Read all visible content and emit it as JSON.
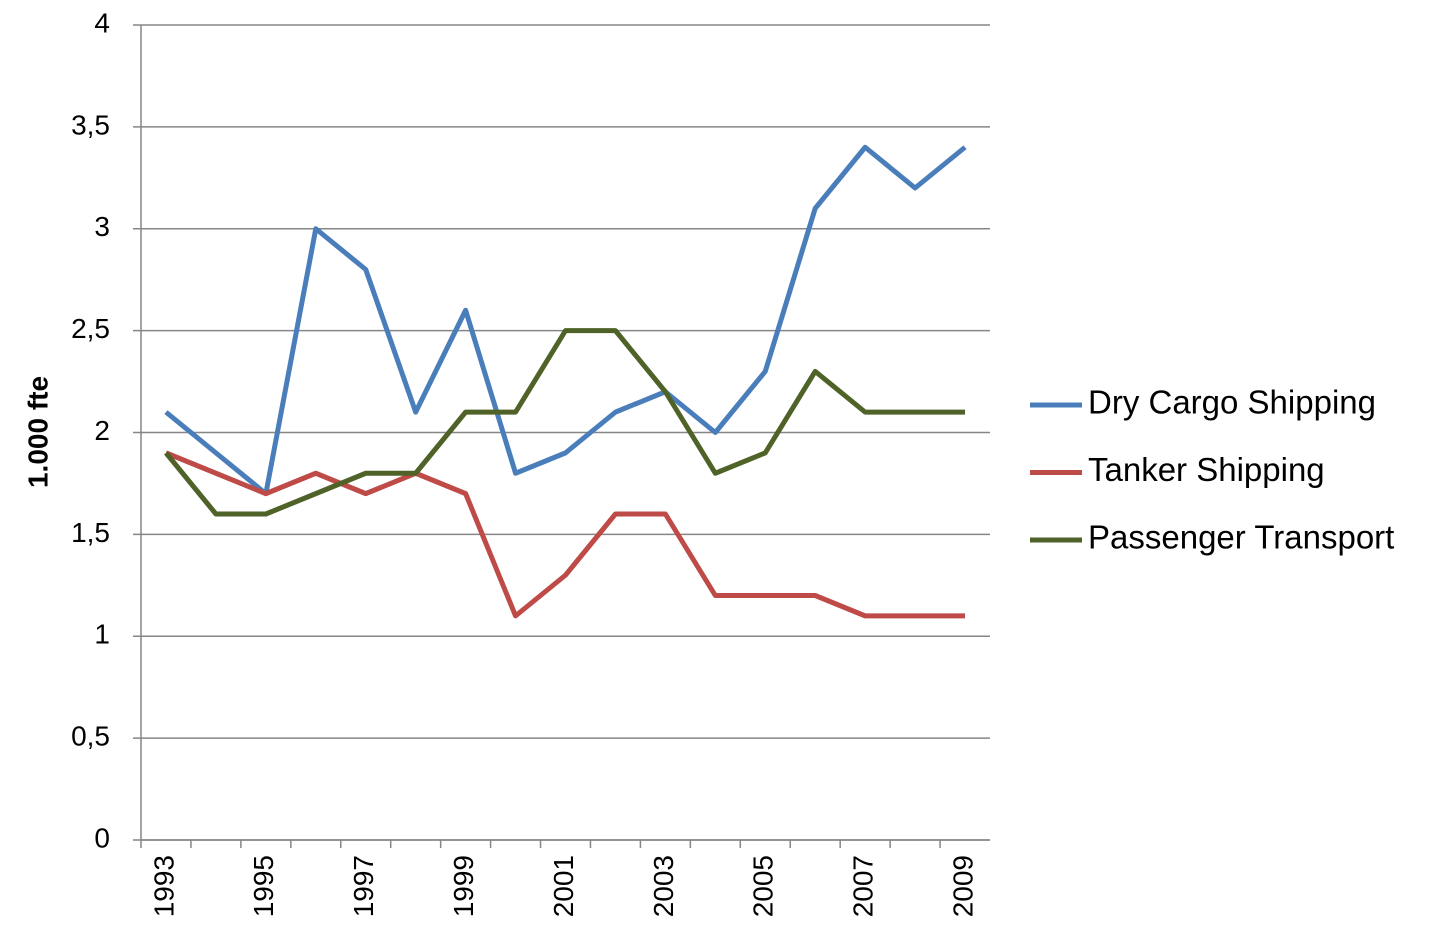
{
  "chart_data": {
    "type": "line",
    "y_label": "1.000 fte",
    "categories": [
      "1993",
      null,
      "1995",
      null,
      "1997",
      null,
      "1999",
      null,
      "2001",
      null,
      "2003",
      null,
      "2005",
      null,
      "2007",
      null,
      "2009"
    ],
    "series": [
      {
        "name": "Dry Cargo Shipping",
        "color": "#4a7ebb",
        "values": [
          2.1,
          1.9,
          1.7,
          3.0,
          2.8,
          2.1,
          2.6,
          1.8,
          1.9,
          2.1,
          2.2,
          2.0,
          2.3,
          3.1,
          3.4,
          3.2,
          3.4
        ]
      },
      {
        "name": "Tanker Shipping",
        "color": "#be4b48",
        "values": [
          1.9,
          1.8,
          1.7,
          1.8,
          1.7,
          1.8,
          1.7,
          1.1,
          1.3,
          1.6,
          1.6,
          1.2,
          1.2,
          1.2,
          1.1,
          1.1,
          1.1
        ]
      },
      {
        "name": "Passenger Transport",
        "color": "#4f6228",
        "values": [
          1.9,
          1.6,
          1.6,
          1.7,
          1.8,
          1.8,
          2.1,
          2.1,
          2.5,
          2.5,
          2.2,
          1.8,
          1.9,
          2.3,
          2.1,
          2.1,
          2.1
        ]
      }
    ],
    "ylim": [
      0,
      4
    ],
    "yticks": [
      0,
      {
        "value": 0.5,
        "label": "0,5"
      },
      1,
      {
        "value": 1.5,
        "label": "1,5"
      },
      2,
      {
        "value": 2.5,
        "label": "2,5"
      },
      3,
      {
        "value": 3.5,
        "label": "3,5"
      },
      4
    ],
    "grid": true,
    "legend": "right"
  }
}
